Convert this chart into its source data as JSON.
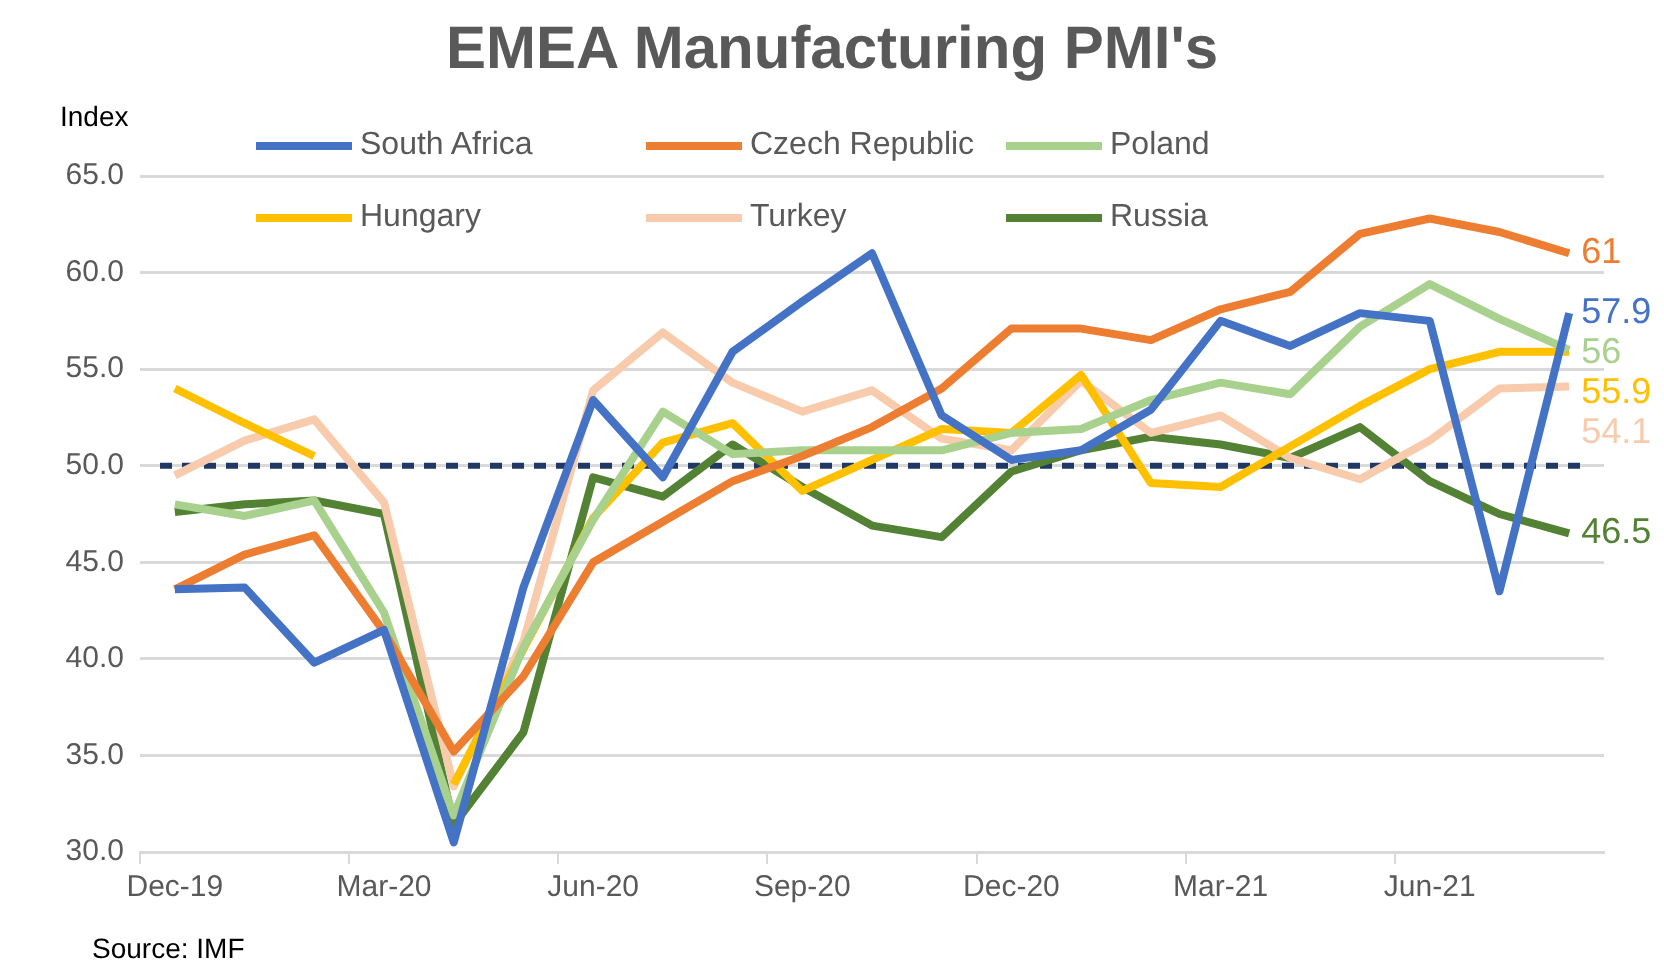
{
  "chart_data": {
    "type": "line",
    "title": "EMEA  Manufacturing PMI's",
    "ylabel": "Index",
    "categories": [
      "Dec-19",
      null,
      null,
      "Mar-20",
      null,
      null,
      "Jun-20",
      null,
      null,
      "Sep-20",
      null,
      null,
      "Dec-20",
      null,
      null,
      "Mar-21",
      null,
      null,
      "Jun-21",
      null,
      null
    ],
    "series": [
      {
        "name": "South Africa",
        "color": "#4472c4",
        "values": [
          43.6,
          43.7,
          39.8,
          41.5,
          30.5,
          43.7,
          53.4,
          49.4,
          55.9,
          58.5,
          61.0,
          52.6,
          50.3,
          50.8,
          52.9,
          57.5,
          56.2,
          57.9,
          57.5,
          43.5,
          57.9
        ],
        "value_labels": [
          null,
          null,
          null,
          null,
          null,
          null,
          null,
          null,
          null,
          null,
          null,
          null,
          null,
          null,
          null,
          null,
          null,
          null,
          null,
          null,
          "57.9"
        ]
      },
      {
        "name": "Czech Republic",
        "color": "#ed7d31",
        "values": [
          43.6,
          45.4,
          46.4,
          41.4,
          35.2,
          39.1,
          45.0,
          47.1,
          49.2,
          50.5,
          52.0,
          54.0,
          57.1,
          57.1,
          56.5,
          58.1,
          59.0,
          62.0,
          62.8,
          62.1,
          61
        ],
        "value_labels": [
          null,
          null,
          null,
          null,
          null,
          null,
          null,
          null,
          null,
          null,
          null,
          null,
          null,
          null,
          null,
          null,
          null,
          null,
          null,
          null,
          "61"
        ]
      },
      {
        "name": "Poland",
        "color": "#a9d18e",
        "values": [
          48.0,
          47.4,
          48.2,
          42.4,
          31.9,
          40.6,
          47.2,
          52.8,
          50.6,
          50.8,
          50.8,
          50.8,
          51.7,
          51.9,
          53.4,
          54.3,
          53.7,
          57.2,
          59.4,
          57.6,
          56
        ],
        "value_labels": [
          null,
          null,
          null,
          null,
          null,
          null,
          null,
          null,
          null,
          null,
          null,
          null,
          null,
          null,
          null,
          null,
          null,
          null,
          null,
          null,
          "56"
        ]
      },
      {
        "name": "Hungary",
        "color": "#ffc000",
        "values": [
          54.0,
          52.2,
          50.5,
          null,
          33.5,
          40.5,
          47.3,
          51.2,
          52.2,
          48.7,
          50.3,
          51.9,
          51.7,
          54.7,
          49.1,
          48.9,
          51.0,
          53.1,
          55.0,
          55.9,
          55.9
        ],
        "value_labels": [
          null,
          null,
          null,
          null,
          null,
          null,
          null,
          null,
          null,
          null,
          null,
          null,
          null,
          null,
          null,
          null,
          null,
          null,
          null,
          null,
          "55.9"
        ]
      },
      {
        "name": "Turkey",
        "color": "#f8cbad",
        "values": [
          49.5,
          51.3,
          52.4,
          48.1,
          33.4,
          40.9,
          53.9,
          56.9,
          54.3,
          52.8,
          53.9,
          51.4,
          50.8,
          54.4,
          51.7,
          52.6,
          50.4,
          49.3,
          51.3,
          54.0,
          54.1
        ],
        "value_labels": [
          null,
          null,
          null,
          null,
          null,
          null,
          null,
          null,
          null,
          null,
          null,
          null,
          null,
          null,
          null,
          null,
          null,
          null,
          null,
          null,
          "54.1"
        ]
      },
      {
        "name": "Russia",
        "color": "#548235",
        "values": [
          47.6,
          48.0,
          48.2,
          47.5,
          31.4,
          36.2,
          49.4,
          48.4,
          51.1,
          48.9,
          46.9,
          46.3,
          49.7,
          50.8,
          51.5,
          51.1,
          50.4,
          52.0,
          49.2,
          47.5,
          46.5
        ],
        "value_labels": [
          null,
          null,
          null,
          null,
          null,
          null,
          null,
          null,
          null,
          null,
          null,
          null,
          null,
          null,
          null,
          null,
          null,
          null,
          null,
          null,
          "46.5"
        ]
      }
    ],
    "ylim": [
      30,
      65
    ],
    "yticks": [
      {
        "value": 30,
        "label": "30.0"
      },
      {
        "value": 35,
        "label": "35.0"
      },
      {
        "value": 40,
        "label": "40.0"
      },
      {
        "value": 45,
        "label": "45.0"
      },
      {
        "value": 50,
        "label": "50.0"
      },
      {
        "value": 55,
        "label": "55.0"
      },
      {
        "value": 60,
        "label": "60.0"
      },
      {
        "value": 65,
        "label": "65.0"
      }
    ],
    "ref_lines": [
      {
        "axis": "y",
        "value": 50,
        "color": "#1f3864",
        "line_style": "dashed"
      }
    ],
    "grid": "y",
    "legend": "top",
    "marker": "none",
    "line_style": "solid",
    "annotations": [
      "Source: IMF"
    ]
  }
}
